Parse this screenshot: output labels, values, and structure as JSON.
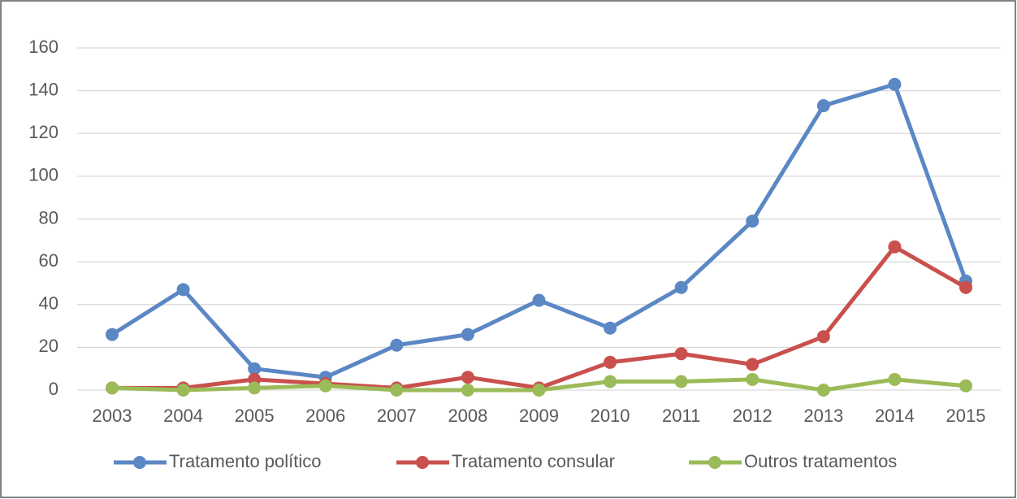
{
  "chart_data": {
    "type": "line",
    "categories": [
      "2003",
      "2004",
      "2005",
      "2006",
      "2007",
      "2008",
      "2009",
      "2010",
      "2011",
      "2012",
      "2013",
      "2014",
      "2015"
    ],
    "series": [
      {
        "name": "Tratamento político",
        "color": "#5b87c5",
        "values": [
          26,
          47,
          10,
          6,
          21,
          26,
          42,
          29,
          48,
          79,
          133,
          143,
          51
        ]
      },
      {
        "name": "Tratamento consular",
        "color": "#c9504d",
        "values": [
          1,
          1,
          5,
          3,
          1,
          6,
          1,
          13,
          17,
          12,
          25,
          67,
          48
        ]
      },
      {
        "name": "Outros tratamentos",
        "color": "#9bbb59",
        "values": [
          1,
          0,
          1,
          2,
          0,
          0,
          0,
          4,
          4,
          5,
          0,
          5,
          2
        ]
      }
    ],
    "ylim": [
      0,
      160
    ],
    "yticks": [
      0,
      20,
      40,
      60,
      80,
      100,
      120,
      140,
      160
    ],
    "grid": true,
    "legend": "bottom"
  }
}
